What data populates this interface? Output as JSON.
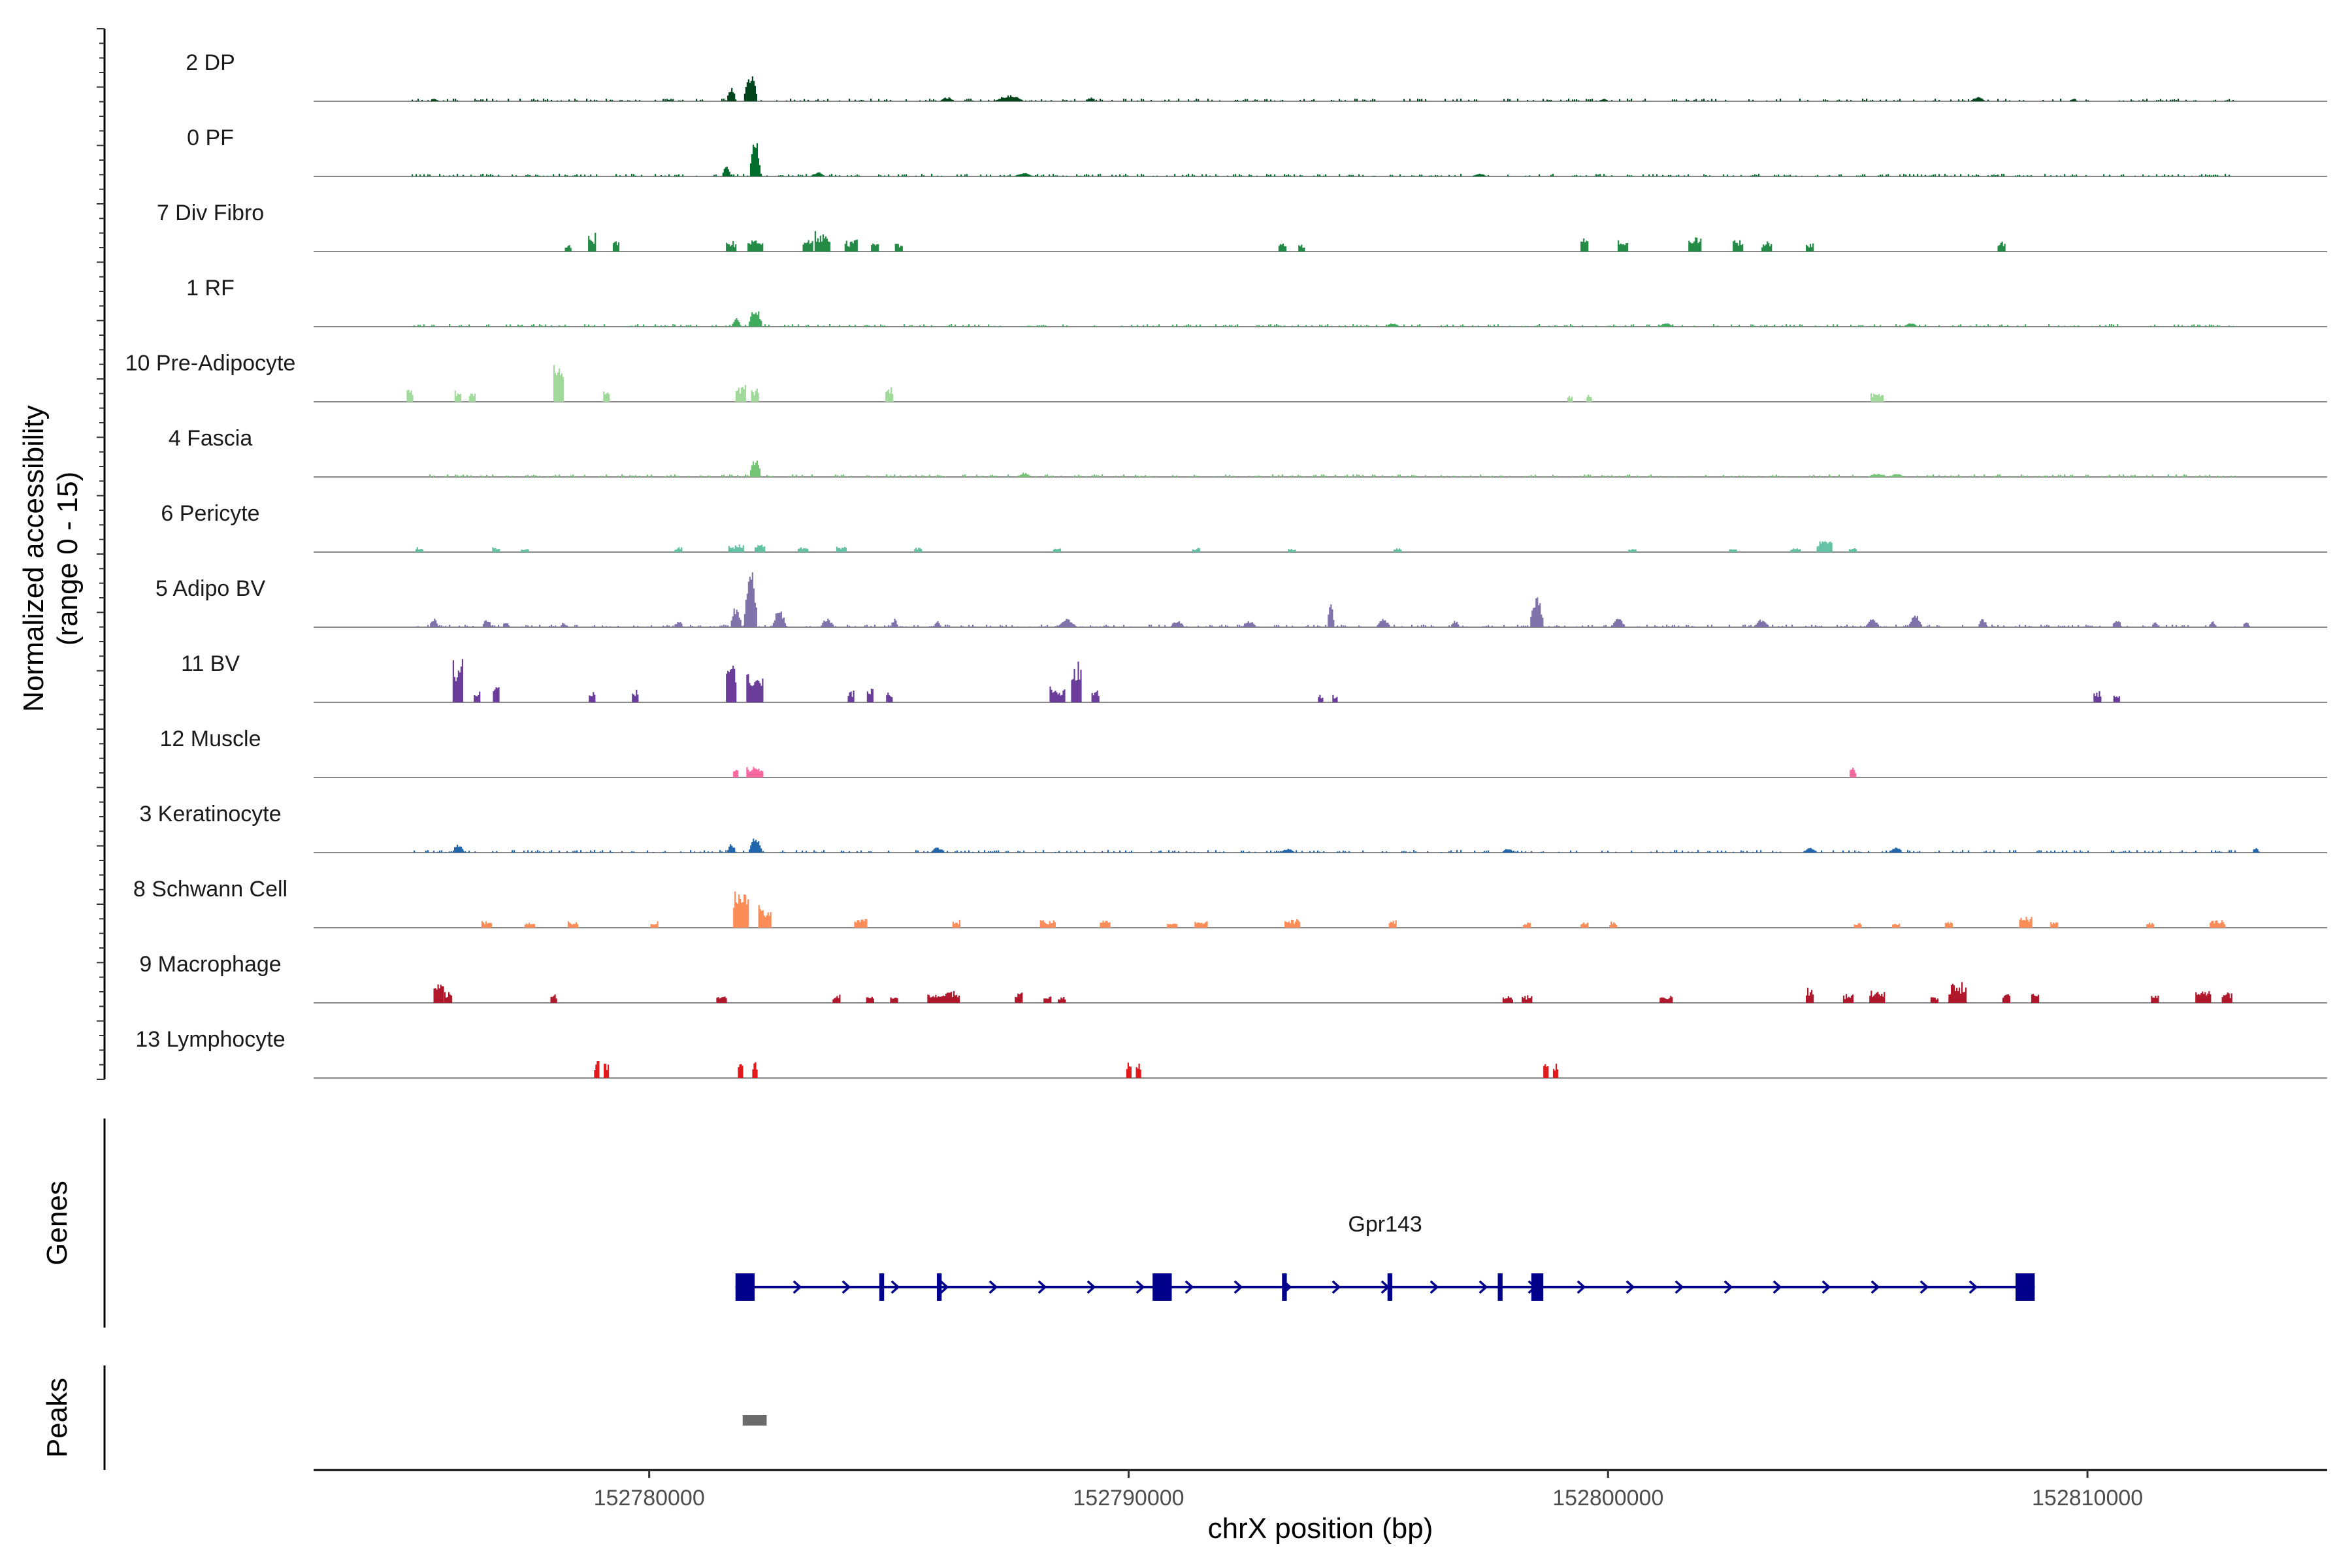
{
  "chart_data": {
    "type": "coverage",
    "y_axis_label_line1": "Normalized accessibility",
    "y_axis_label_line2": "(range 0 - 15)",
    "y_range": [
      0,
      15
    ],
    "x_label": "chrX position (bp)",
    "x_range": [
      152773000,
      152815000
    ],
    "x_ticks": [
      152780000,
      152790000,
      152800000,
      152810000
    ],
    "genes_panel_label": "Genes",
    "peaks_panel_label": "Peaks",
    "tracks": [
      {
        "name": "2 DP",
        "color": "#00441b",
        "style": "noise",
        "peaks": [
          [
            152775500,
            0.8,
            150
          ],
          [
            152780400,
            0.5,
            100
          ],
          [
            152782100,
            6.5,
            300
          ],
          [
            152781700,
            3.5,
            200
          ],
          [
            152786200,
            1.0,
            300
          ],
          [
            152787500,
            1.4,
            600
          ],
          [
            152789200,
            1.0,
            200
          ],
          [
            152799900,
            0.6,
            200
          ],
          [
            152807700,
            1.0,
            300
          ],
          [
            152809700,
            0.8,
            150
          ]
        ]
      },
      {
        "name": "0 PF",
        "color": "#006d2c",
        "style": "noise",
        "peaks": [
          [
            152782200,
            8.5,
            250
          ],
          [
            152781600,
            2.5,
            200
          ],
          [
            152783500,
            1.0,
            300
          ],
          [
            152787800,
            0.8,
            400
          ],
          [
            152797300,
            0.7,
            300
          ]
        ]
      },
      {
        "name": "7 Div Fibro",
        "color": "#238b45",
        "style": "blocks",
        "peaks": [
          [
            152778300,
            2.0,
            120
          ],
          [
            152778800,
            4.5,
            150
          ],
          [
            152779300,
            3.0,
            120
          ],
          [
            152781700,
            3.0,
            200
          ],
          [
            152782200,
            3.2,
            300
          ],
          [
            152783300,
            3.5,
            200
          ],
          [
            152783600,
            5.0,
            300
          ],
          [
            152784200,
            3.0,
            250
          ],
          [
            152784700,
            2.5,
            150
          ],
          [
            152785200,
            2.5,
            150
          ],
          [
            152793200,
            2.0,
            150
          ],
          [
            152793600,
            2.0,
            120
          ],
          [
            152799500,
            4.0,
            150
          ],
          [
            152800300,
            3.0,
            200
          ],
          [
            152801800,
            4.0,
            250
          ],
          [
            152802700,
            3.0,
            200
          ],
          [
            152803300,
            2.5,
            200
          ],
          [
            152804200,
            2.5,
            150
          ],
          [
            152808200,
            3.0,
            150
          ]
        ]
      },
      {
        "name": "1 RF",
        "color": "#41ab5d",
        "style": "noise",
        "peaks": [
          [
            152782200,
            4.5,
            300
          ],
          [
            152781800,
            2.0,
            200
          ],
          [
            152795500,
            0.8,
            300
          ],
          [
            152801200,
            0.8,
            300
          ],
          [
            152806300,
            0.8,
            300
          ]
        ]
      },
      {
        "name": "10 Pre-Adipocyte",
        "color": "#a1d99b",
        "style": "blocks",
        "peaks": [
          [
            152775000,
            4.0,
            120
          ],
          [
            152776000,
            3.0,
            120
          ],
          [
            152776300,
            3.0,
            120
          ],
          [
            152778100,
            10.0,
            200
          ],
          [
            152779100,
            3.5,
            120
          ],
          [
            152781900,
            4.5,
            200
          ],
          [
            152782200,
            4.0,
            150
          ],
          [
            152785000,
            4.0,
            150
          ],
          [
            152799200,
            2.0,
            100
          ],
          [
            152799600,
            2.0,
            100
          ],
          [
            152805600,
            2.5,
            250
          ]
        ]
      },
      {
        "name": "4 Fascia",
        "color": "#74c476",
        "style": "noise",
        "peaks": [
          [
            152782200,
            4.5,
            250
          ],
          [
            152787800,
            1.0,
            300
          ],
          [
            152805600,
            0.8,
            400
          ],
          [
            152806000,
            0.8,
            300
          ]
        ]
      },
      {
        "name": "6 Pericyte",
        "color": "#66c2a4",
        "style": "blocks",
        "peaks": [
          [
            152775200,
            1.2,
            150
          ],
          [
            152776800,
            1.2,
            150
          ],
          [
            152777400,
            1.0,
            150
          ],
          [
            152780600,
            1.2,
            150
          ],
          [
            152781800,
            2.0,
            300
          ],
          [
            152782300,
            2.0,
            200
          ],
          [
            152783200,
            1.5,
            200
          ],
          [
            152784000,
            1.5,
            200
          ],
          [
            152785600,
            1.2,
            150
          ],
          [
            152788500,
            1.2,
            150
          ],
          [
            152791400,
            1.2,
            150
          ],
          [
            152793400,
            1.0,
            150
          ],
          [
            152795600,
            1.0,
            150
          ],
          [
            152800500,
            1.0,
            150
          ],
          [
            152802600,
            1.0,
            150
          ],
          [
            152804500,
            3.5,
            300
          ],
          [
            152803900,
            1.0,
            200
          ],
          [
            152805100,
            1.2,
            150
          ]
        ]
      },
      {
        "name": "5 Adipo BV",
        "color": "#8073ac",
        "style": "noise",
        "peaks": [
          [
            152775500,
            2.0,
            200
          ],
          [
            152776600,
            2.0,
            200
          ],
          [
            152777000,
            1.5,
            150
          ],
          [
            152778200,
            1.2,
            150
          ],
          [
            152780600,
            1.5,
            200
          ],
          [
            152782100,
            14.0,
            300
          ],
          [
            152781800,
            5.0,
            250
          ],
          [
            152782700,
            4.0,
            300
          ],
          [
            152783700,
            2.0,
            300
          ],
          [
            152785100,
            2.0,
            150
          ],
          [
            152786000,
            1.5,
            150
          ],
          [
            152788700,
            2.0,
            400
          ],
          [
            152791000,
            1.5,
            300
          ],
          [
            152792500,
            1.5,
            300
          ],
          [
            152794200,
            7.0,
            150
          ],
          [
            152795300,
            2.0,
            300
          ],
          [
            152796800,
            1.5,
            200
          ],
          [
            152798500,
            7.5,
            300
          ],
          [
            152800200,
            2.0,
            300
          ],
          [
            152803200,
            2.0,
            300
          ],
          [
            152805500,
            2.0,
            300
          ],
          [
            152806400,
            3.0,
            300
          ],
          [
            152807800,
            2.0,
            200
          ],
          [
            152810600,
            2.0,
            200
          ],
          [
            152811400,
            1.5,
            150
          ],
          [
            152812600,
            1.5,
            150
          ],
          [
            152813300,
            1.5,
            150
          ]
        ]
      },
      {
        "name": "11 BV",
        "color": "#6a3d9a",
        "style": "blocks",
        "peaks": [
          [
            152776000,
            12.0,
            200
          ],
          [
            152776400,
            3.0,
            120
          ],
          [
            152776800,
            5.0,
            120
          ],
          [
            152778800,
            3.0,
            120
          ],
          [
            152779700,
            3.0,
            120
          ],
          [
            152781700,
            12.0,
            200
          ],
          [
            152782200,
            8.0,
            350
          ],
          [
            152784200,
            3.0,
            120
          ],
          [
            152784600,
            3.5,
            120
          ],
          [
            152785000,
            2.5,
            120
          ],
          [
            152788500,
            4.0,
            300
          ],
          [
            152788900,
            10.0,
            200
          ],
          [
            152789300,
            4.0,
            150
          ],
          [
            152794000,
            2.0,
            100
          ],
          [
            152794300,
            2.0,
            100
          ],
          [
            152810200,
            3.0,
            150
          ],
          [
            152810600,
            2.0,
            120
          ]
        ]
      },
      {
        "name": "12 Muscle",
        "color": "#f768a1",
        "style": "blocks",
        "peaks": [
          [
            152781800,
            2.5,
            100
          ],
          [
            152782200,
            3.0,
            350
          ],
          [
            152780000,
            0.0,
            10
          ],
          [
            152805100,
            2.5,
            120
          ]
        ]
      },
      {
        "name": "3 Keratinocyte",
        "color": "#2166ac",
        "style": "noise",
        "peaks": [
          [
            152776000,
            2.0,
            250
          ],
          [
            152782200,
            3.5,
            300
          ],
          [
            152781700,
            2.0,
            200
          ],
          [
            152786000,
            1.2,
            300
          ],
          [
            152793300,
            1.0,
            300
          ],
          [
            152797900,
            1.0,
            250
          ],
          [
            152804200,
            1.2,
            300
          ],
          [
            152806000,
            1.5,
            250
          ],
          [
            152813500,
            1.2,
            150
          ]
        ]
      },
      {
        "name": "8 Schwann Cell",
        "color": "#fc8d59",
        "style": "blocks",
        "peaks": [
          [
            152781900,
            10.0,
            300
          ],
          [
            152782400,
            6.0,
            250
          ],
          [
            152776600,
            2.0,
            200
          ],
          [
            152777500,
            1.5,
            200
          ],
          [
            152778400,
            1.5,
            200
          ],
          [
            152780100,
            1.5,
            150
          ],
          [
            152784400,
            2.5,
            250
          ],
          [
            152786400,
            2.0,
            150
          ],
          [
            152788300,
            2.0,
            300
          ],
          [
            152789500,
            2.0,
            200
          ],
          [
            152790900,
            1.5,
            200
          ],
          [
            152791500,
            2.0,
            250
          ],
          [
            152793400,
            2.5,
            300
          ],
          [
            152795500,
            2.0,
            150
          ],
          [
            152798300,
            1.5,
            150
          ],
          [
            152799500,
            1.5,
            150
          ],
          [
            152800100,
            1.5,
            150
          ],
          [
            152805200,
            1.5,
            150
          ],
          [
            152806000,
            1.5,
            150
          ],
          [
            152807100,
            1.5,
            150
          ],
          [
            152808700,
            3.5,
            250
          ],
          [
            152809300,
            2.0,
            150
          ],
          [
            152811300,
            1.5,
            150
          ],
          [
            152812700,
            2.0,
            300
          ]
        ]
      },
      {
        "name": "9 Macrophage",
        "color": "#b2182b",
        "style": "blocks",
        "peaks": [
          [
            152775600,
            6.0,
            200
          ],
          [
            152775800,
            3.0,
            150
          ],
          [
            152778000,
            2.5,
            120
          ],
          [
            152781500,
            2.0,
            200
          ],
          [
            152783900,
            2.0,
            150
          ],
          [
            152784600,
            2.0,
            150
          ],
          [
            152785100,
            2.0,
            150
          ],
          [
            152786000,
            2.5,
            400
          ],
          [
            152786300,
            3.0,
            300
          ],
          [
            152787700,
            3.0,
            150
          ],
          [
            152788300,
            2.0,
            150
          ],
          [
            152788600,
            2.0,
            150
          ],
          [
            152797900,
            2.0,
            200
          ],
          [
            152798300,
            2.0,
            200
          ],
          [
            152801200,
            2.0,
            250
          ],
          [
            152804200,
            4.0,
            150
          ],
          [
            152805000,
            2.5,
            200
          ],
          [
            152805600,
            3.0,
            300
          ],
          [
            152806800,
            2.0,
            150
          ],
          [
            152807300,
            5.5,
            300
          ],
          [
            152807200,
            3.0,
            200
          ],
          [
            152808300,
            2.5,
            150
          ],
          [
            152808900,
            3.0,
            150
          ],
          [
            152811400,
            2.0,
            150
          ],
          [
            152812400,
            4.0,
            300
          ],
          [
            152812900,
            3.0,
            200
          ]
        ]
      },
      {
        "name": "13 Lymphocyte",
        "color": "#e31a1c",
        "style": "blocks",
        "peaks": [
          [
            152778900,
            4.5,
            100
          ],
          [
            152779100,
            4.5,
            100
          ],
          [
            152781900,
            4.5,
            100
          ],
          [
            152782200,
            4.5,
            100
          ],
          [
            152790000,
            4.5,
            100
          ],
          [
            152790200,
            4.5,
            100
          ],
          [
            152798700,
            4.5,
            100
          ],
          [
            152798900,
            4.5,
            100
          ]
        ]
      }
    ],
    "gene": {
      "name": "Gpr143",
      "strand": "+",
      "start": 152781800,
      "end": 152808900,
      "color": "#00008b",
      "exons": [
        [
          152781800,
          152782200
        ],
        [
          152784800,
          152784900
        ],
        [
          152786000,
          152786100
        ],
        [
          152790500,
          152790900
        ],
        [
          152793200,
          152793300
        ],
        [
          152795400,
          152795500
        ],
        [
          152797700,
          152797800
        ],
        [
          152798400,
          152798650
        ],
        [
          152808500,
          152808900
        ]
      ]
    },
    "peak_regions": [
      [
        152781950,
        152782450
      ]
    ],
    "peak_color": "#6b6b6b"
  }
}
